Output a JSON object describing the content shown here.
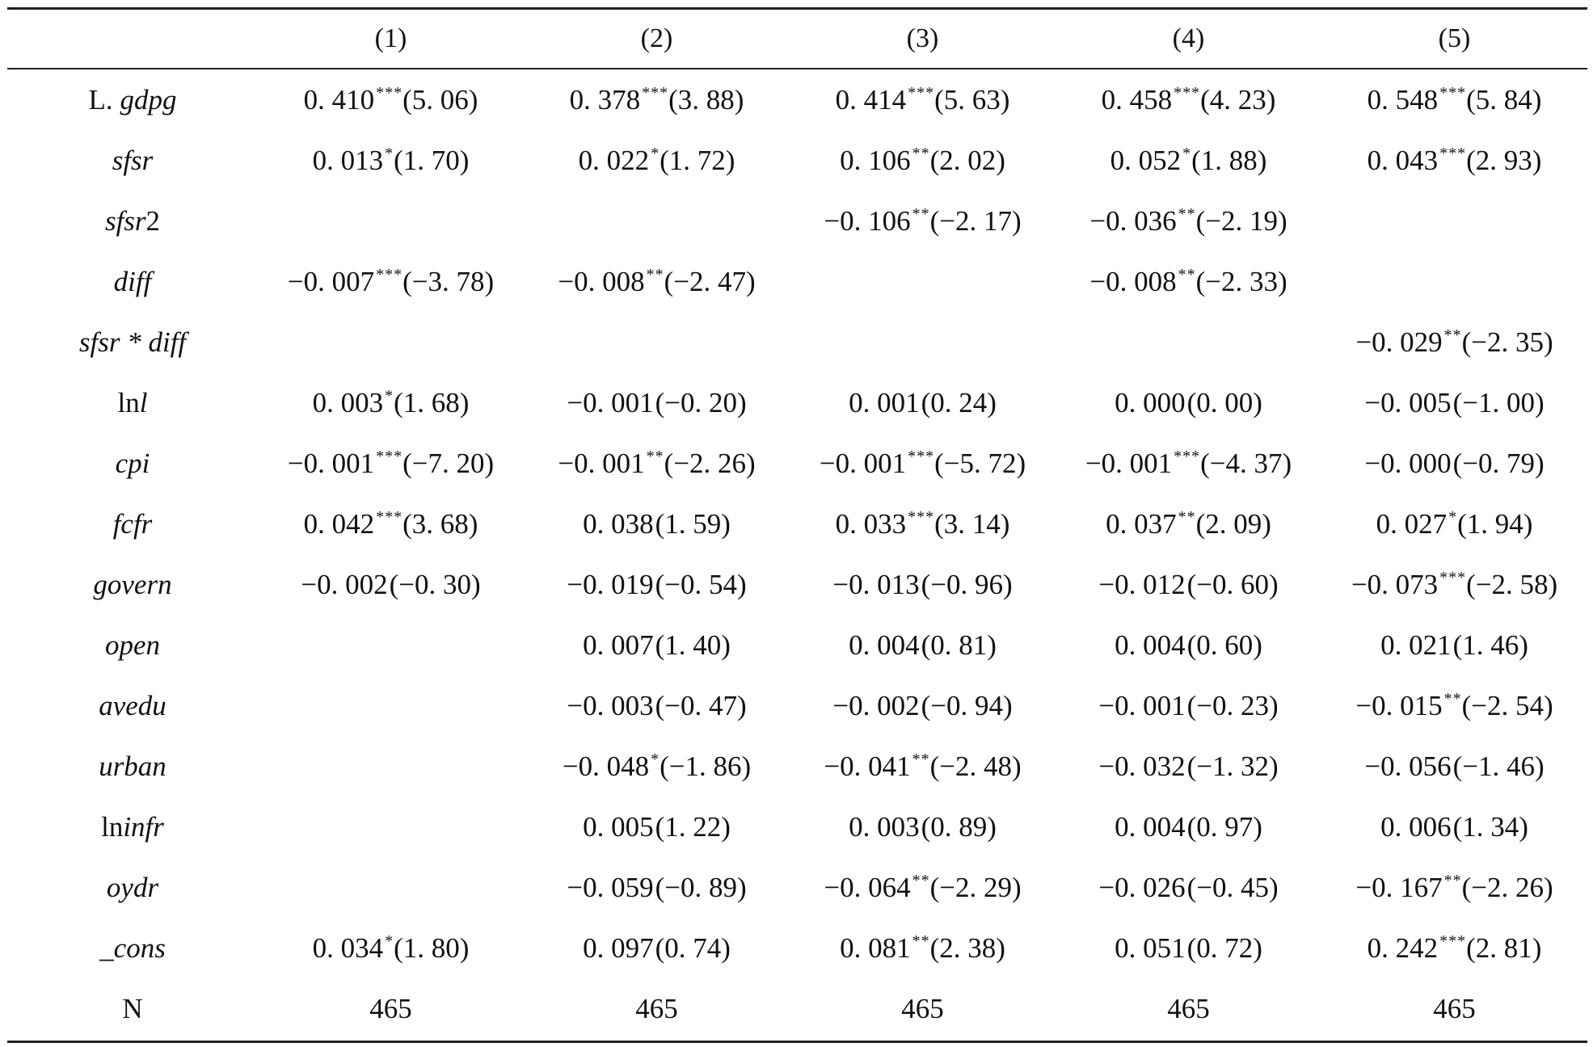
{
  "columns": [
    "(1)",
    "(2)",
    "(3)",
    "(4)",
    "(5)"
  ],
  "rows": [
    {
      "prefix": "L. ",
      "var": "gdpg",
      "suffix": "",
      "cells": [
        {
          "coef": "0. 410",
          "stars": "***",
          "t": "(5. 06)"
        },
        {
          "coef": "0. 378",
          "stars": "***",
          "t": "(3. 88)"
        },
        {
          "coef": "0. 414",
          "stars": "***",
          "t": "(5. 63)"
        },
        {
          "coef": "0. 458",
          "stars": "***",
          "t": "(4. 23)"
        },
        {
          "coef": "0. 548",
          "stars": "***",
          "t": "(5. 84)"
        }
      ]
    },
    {
      "prefix": "",
      "var": "sfsr",
      "suffix": "",
      "cells": [
        {
          "coef": "0. 013",
          "stars": "*",
          "t": "(1. 70)"
        },
        {
          "coef": "0. 022",
          "stars": "*",
          "t": "(1. 72)"
        },
        {
          "coef": "0. 106",
          "stars": "**",
          "t": "(2. 02)"
        },
        {
          "coef": "0. 052",
          "stars": "*",
          "t": "(1. 88)"
        },
        {
          "coef": "0. 043",
          "stars": "***",
          "t": "(2. 93)"
        }
      ]
    },
    {
      "prefix": "",
      "var": "sfsr",
      "suffix": "2",
      "cells": [
        {
          "coef": "",
          "stars": "",
          "t": ""
        },
        {
          "coef": "",
          "stars": "",
          "t": ""
        },
        {
          "coef": "−0. 106",
          "stars": "**",
          "t": "(−2. 17)"
        },
        {
          "coef": "−0. 036",
          "stars": "**",
          "t": "(−2. 19)"
        },
        {
          "coef": "",
          "stars": "",
          "t": ""
        }
      ]
    },
    {
      "prefix": "",
      "var": "diff",
      "suffix": "",
      "cells": [
        {
          "coef": "−0. 007",
          "stars": "***",
          "t": "(−3. 78)"
        },
        {
          "coef": "−0. 008",
          "stars": "**",
          "t": "(−2. 47)"
        },
        {
          "coef": "",
          "stars": "",
          "t": ""
        },
        {
          "coef": "−0. 008",
          "stars": "**",
          "t": "(−2. 33)"
        },
        {
          "coef": "",
          "stars": "",
          "t": ""
        }
      ]
    },
    {
      "prefix": "",
      "var": "sfsr * diff",
      "suffix": "",
      "cells": [
        {
          "coef": "",
          "stars": "",
          "t": ""
        },
        {
          "coef": "",
          "stars": "",
          "t": ""
        },
        {
          "coef": "",
          "stars": "",
          "t": ""
        },
        {
          "coef": "",
          "stars": "",
          "t": ""
        },
        {
          "coef": "−0. 029",
          "stars": "**",
          "t": "(−2. 35)"
        }
      ]
    },
    {
      "prefix": "ln",
      "var": "l",
      "suffix": "",
      "cells": [
        {
          "coef": "0. 003",
          "stars": "*",
          "t": "(1. 68)"
        },
        {
          "coef": "−0. 001",
          "stars": "",
          "t": "(−0. 20)"
        },
        {
          "coef": "0. 001",
          "stars": "",
          "t": "(0. 24)"
        },
        {
          "coef": "0. 000",
          "stars": "",
          "t": "(0. 00)"
        },
        {
          "coef": "−0. 005",
          "stars": "",
          "t": "(−1. 00)"
        }
      ]
    },
    {
      "prefix": "",
      "var": "cpi",
      "suffix": "",
      "cells": [
        {
          "coef": "−0. 001",
          "stars": "***",
          "t": "(−7. 20)"
        },
        {
          "coef": "−0. 001",
          "stars": "**",
          "t": "(−2. 26)"
        },
        {
          "coef": "−0. 001",
          "stars": "***",
          "t": "(−5. 72)"
        },
        {
          "coef": "−0. 001",
          "stars": "***",
          "t": "(−4. 37)"
        },
        {
          "coef": "−0. 000",
          "stars": "",
          "t": "(−0. 79)"
        }
      ]
    },
    {
      "prefix": "",
      "var": "fcfr",
      "suffix": "",
      "cells": [
        {
          "coef": "0. 042",
          "stars": "***",
          "t": "(3. 68)"
        },
        {
          "coef": "0. 038",
          "stars": "",
          "t": "(1. 59)"
        },
        {
          "coef": "0. 033",
          "stars": "***",
          "t": "(3. 14)"
        },
        {
          "coef": "0. 037",
          "stars": "**",
          "t": "(2. 09)"
        },
        {
          "coef": "0. 027",
          "stars": "*",
          "t": "(1. 94)"
        }
      ]
    },
    {
      "prefix": "",
      "var": "govern",
      "suffix": "",
      "cells": [
        {
          "coef": "−0. 002",
          "stars": "",
          "t": "(−0. 30)"
        },
        {
          "coef": "−0. 019",
          "stars": "",
          "t": "(−0. 54)"
        },
        {
          "coef": "−0. 013",
          "stars": "",
          "t": "(−0. 96)"
        },
        {
          "coef": "−0. 012",
          "stars": "",
          "t": "(−0. 60)"
        },
        {
          "coef": "−0. 073",
          "stars": "***",
          "t": "(−2. 58)"
        }
      ]
    },
    {
      "prefix": "",
      "var": "open",
      "suffix": "",
      "cells": [
        {
          "coef": "",
          "stars": "",
          "t": ""
        },
        {
          "coef": "0. 007",
          "stars": "",
          "t": "(1. 40)"
        },
        {
          "coef": "0. 004",
          "stars": "",
          "t": "(0. 81)"
        },
        {
          "coef": "0. 004",
          "stars": "",
          "t": "(0. 60)"
        },
        {
          "coef": "0. 021",
          "stars": "",
          "t": "(1. 46)"
        }
      ]
    },
    {
      "prefix": "",
      "var": "avedu",
      "suffix": "",
      "cells": [
        {
          "coef": "",
          "stars": "",
          "t": ""
        },
        {
          "coef": "−0. 003",
          "stars": "",
          "t": "(−0. 47)"
        },
        {
          "coef": "−0. 002",
          "stars": "",
          "t": "(−0. 94)"
        },
        {
          "coef": "−0. 001",
          "stars": "",
          "t": "(−0. 23)"
        },
        {
          "coef": "−0. 015",
          "stars": "**",
          "t": "(−2. 54)"
        }
      ]
    },
    {
      "prefix": "",
      "var": "urban",
      "suffix": "",
      "cells": [
        {
          "coef": "",
          "stars": "",
          "t": ""
        },
        {
          "coef": "−0. 048",
          "stars": "*",
          "t": "(−1. 86)"
        },
        {
          "coef": "−0. 041",
          "stars": "**",
          "t": "(−2. 48)"
        },
        {
          "coef": "−0. 032",
          "stars": "",
          "t": "(−1. 32)"
        },
        {
          "coef": "−0. 056",
          "stars": "",
          "t": "(−1. 46)"
        }
      ]
    },
    {
      "prefix": "ln",
      "var": "infr",
      "suffix": "",
      "cells": [
        {
          "coef": "",
          "stars": "",
          "t": ""
        },
        {
          "coef": "0. 005",
          "stars": "",
          "t": "(1. 22)"
        },
        {
          "coef": "0. 003",
          "stars": "",
          "t": "(0. 89)"
        },
        {
          "coef": "0. 004",
          "stars": "",
          "t": "(0. 97)"
        },
        {
          "coef": "0. 006",
          "stars": "",
          "t": "(1. 34)"
        }
      ]
    },
    {
      "prefix": "",
      "var": "oydr",
      "suffix": "",
      "cells": [
        {
          "coef": "",
          "stars": "",
          "t": ""
        },
        {
          "coef": "−0. 059",
          "stars": "",
          "t": "(−0. 89)"
        },
        {
          "coef": "−0. 064",
          "stars": "**",
          "t": "(−2. 29)"
        },
        {
          "coef": "−0. 026",
          "stars": "",
          "t": "(−0. 45)"
        },
        {
          "coef": "−0. 167",
          "stars": "**",
          "t": "(−2. 26)"
        }
      ]
    },
    {
      "prefix": "",
      "var": "_cons",
      "suffix": "",
      "cells": [
        {
          "coef": "0. 034",
          "stars": "*",
          "t": "(1. 80)"
        },
        {
          "coef": "0. 097",
          "stars": "",
          "t": "(0. 74)"
        },
        {
          "coef": "0. 081",
          "stars": "**",
          "t": "(2. 38)"
        },
        {
          "coef": "0. 051",
          "stars": "",
          "t": "(0. 72)"
        },
        {
          "coef": "0. 242",
          "stars": "***",
          "t": "(2. 81)"
        }
      ]
    }
  ],
  "n_row": {
    "label": "N",
    "values": [
      "465",
      "465",
      "465",
      "465",
      "465"
    ]
  }
}
